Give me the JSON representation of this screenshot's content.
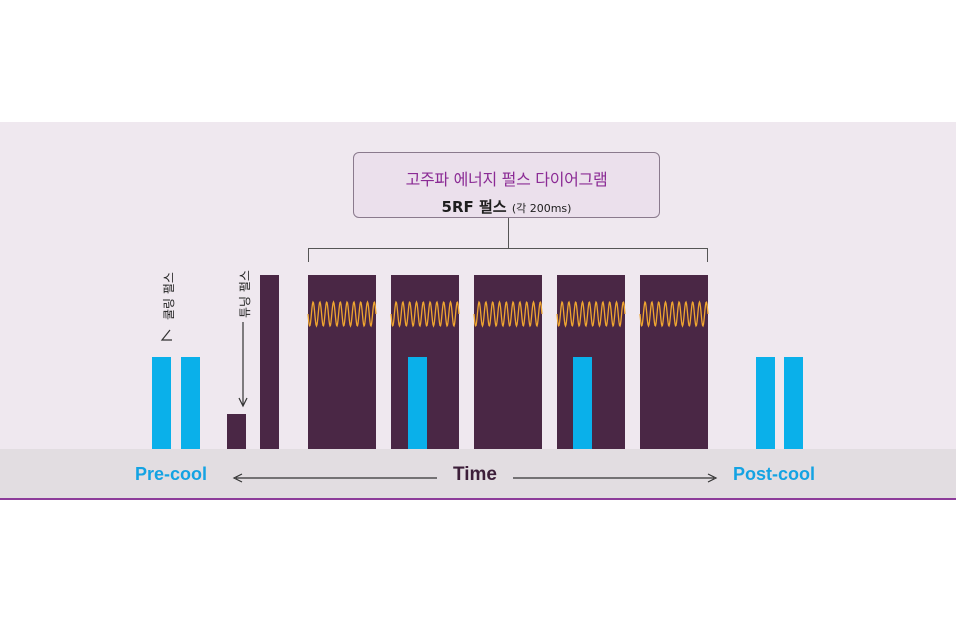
{
  "diagram": {
    "title": "고주파 에너지 펄스 다이어그램",
    "subtitle_main": "5RF 펄스",
    "subtitle_note": "(각 200ms)",
    "cooling_pulse_label": "쿨링 펄스",
    "tuning_pulse_label": "튜닝 펄스",
    "pre_cool_label": "Pre-cool",
    "time_label": "Time",
    "post_cool_label": "Post-cool",
    "colors": {
      "rf_pulse": "#4a2745",
      "cooling": "#0ab0ea",
      "wave": "#f0a630",
      "title_accent": "#8b2b95"
    }
  }
}
